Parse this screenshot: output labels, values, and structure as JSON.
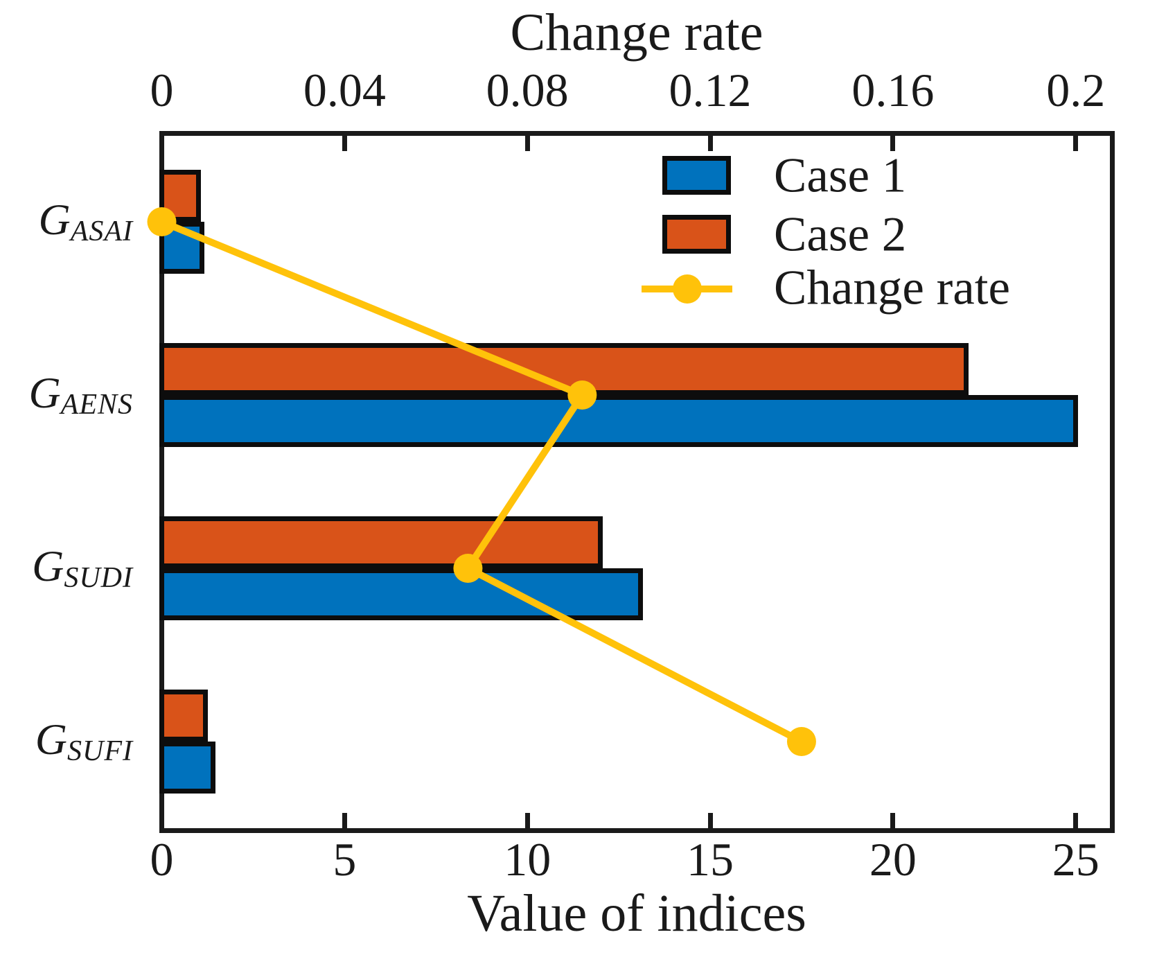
{
  "chart_data": {
    "type": "bar",
    "orientation": "horizontal-grouped-with-line-overlay",
    "categories": [
      {
        "base": "G",
        "sub": "ASAI"
      },
      {
        "base": "G",
        "sub": "AENS"
      },
      {
        "base": "G",
        "sub": "SUDI"
      },
      {
        "base": "G",
        "sub": "SUFI"
      }
    ],
    "series": [
      {
        "name": "Case 1",
        "color": "#0072BD",
        "values": [
          1.1,
          25.0,
          13.1,
          1.4
        ]
      },
      {
        "name": "Case 2",
        "color": "#D95319",
        "values": [
          1.0,
          22.0,
          12.0,
          1.2
        ]
      }
    ],
    "line_series": {
      "name": "Change rate",
      "color": "#FFC20A",
      "values": [
        0.0,
        0.092,
        0.067,
        0.14
      ]
    },
    "bottom_axis": {
      "label": "Value of indices",
      "ticks": [
        0,
        5,
        10,
        15,
        20,
        25
      ],
      "range": [
        0,
        26
      ]
    },
    "top_axis": {
      "label": "Change rate",
      "ticks": [
        "0",
        "0.04",
        "0.08",
        "0.12",
        "0.16",
        "0.2"
      ],
      "tick_values": [
        0,
        0.04,
        0.08,
        0.12,
        0.16,
        0.2
      ],
      "range": [
        0,
        0.208
      ]
    },
    "legend": {
      "position": "upper-right",
      "items": [
        {
          "label": "Case 1",
          "swatch": "blue-rect"
        },
        {
          "label": "Case 2",
          "swatch": "orange-rect"
        },
        {
          "label": "Change rate",
          "swatch": "yellow-line-marker"
        }
      ]
    },
    "grid": false
  },
  "colors": {
    "case1_blue": "#0072BD",
    "case2_orange": "#D95319",
    "change_rate_yellow": "#FFC20A",
    "axis_black": "#1a1a1a"
  }
}
